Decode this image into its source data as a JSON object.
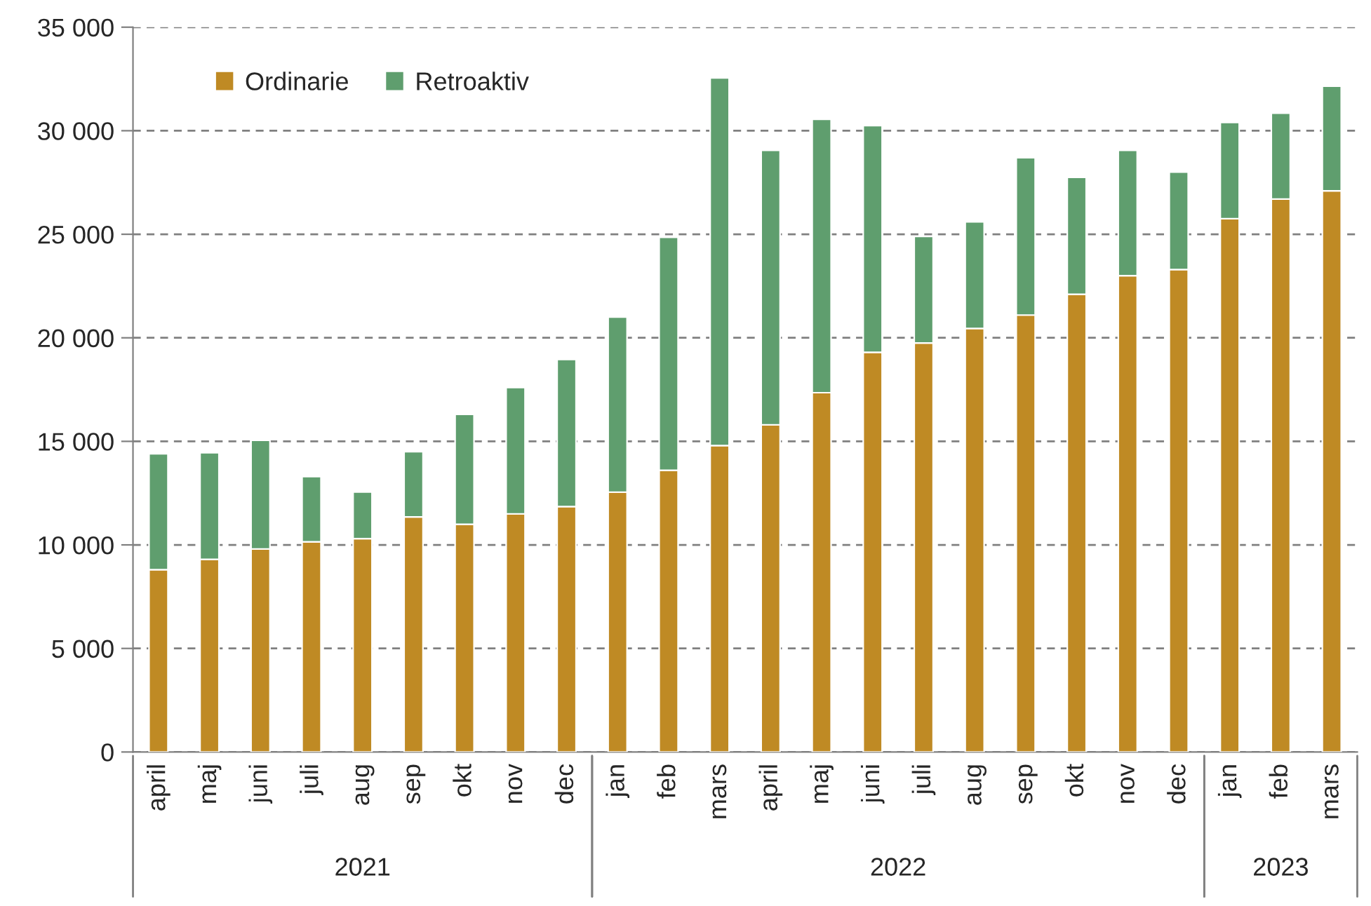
{
  "chart_data": {
    "type": "bar",
    "stacked": true,
    "categories": [
      "april",
      "maj",
      "juni",
      "juli",
      "aug",
      "sep",
      "okt",
      "nov",
      "dec",
      "jan",
      "feb",
      "mars",
      "april",
      "maj",
      "juni",
      "juli",
      "aug",
      "sep",
      "okt",
      "nov",
      "dec",
      "jan",
      "feb",
      "mars"
    ],
    "series": [
      {
        "name": "Ordinarie",
        "color": "#bf8a24",
        "values": [
          8800,
          9300,
          9800,
          10150,
          10300,
          11350,
          11000,
          11500,
          11850,
          12550,
          13600,
          14800,
          15800,
          17350,
          19300,
          19750,
          20450,
          21100,
          22100,
          23000,
          23300,
          25750,
          26700,
          27100
        ]
      },
      {
        "name": "Retroaktiv",
        "color": "#5f9e6e",
        "values": [
          5600,
          5150,
          5250,
          3150,
          2250,
          3150,
          5300,
          6100,
          7100,
          8450,
          11250,
          17750,
          13250,
          13200,
          10950,
          5150,
          5150,
          7600,
          5650,
          6050,
          4700,
          4650,
          4150,
          5050
        ]
      }
    ],
    "ylim": [
      0,
      35000
    ],
    "yticks": [
      0,
      {
        "value": 5000,
        "label": "5 000"
      },
      {
        "value": 10000,
        "label": "10 000"
      },
      {
        "value": 15000,
        "label": "15 000"
      },
      {
        "value": 20000,
        "label": "20 000"
      },
      {
        "value": 25000,
        "label": "25 000"
      },
      {
        "value": 30000,
        "label": "30 000"
      },
      {
        "value": 35000,
        "label": "35 000"
      }
    ],
    "grid": "y",
    "legend": "top left",
    "annotations": [
      "2021",
      "2022",
      "2023"
    ]
  }
}
